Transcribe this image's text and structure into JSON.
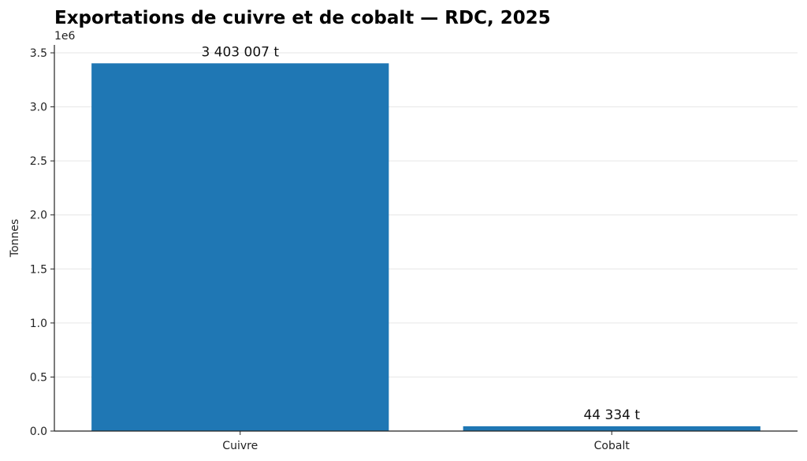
{
  "chart_data": {
    "type": "bar",
    "title": "Exportations de cuivre et de cobalt — RDC, 2025",
    "xlabel": "",
    "ylabel": "Tonnes",
    "y_offset_label": "1e6",
    "categories": [
      "Cuivre",
      "Cobalt"
    ],
    "values": [
      3403007,
      44334
    ],
    "data_labels": [
      "3 403 007 t",
      "44 334 t"
    ],
    "ylim": [
      0,
      3573157
    ],
    "y_ticks": [
      0,
      500000,
      1000000,
      1500000,
      2000000,
      2500000,
      3000000,
      3500000
    ],
    "y_tick_labels": [
      "0.0",
      "0.5",
      "1.0",
      "1.5",
      "2.0",
      "2.5",
      "3.0",
      "3.5"
    ],
    "grid": "horizontal",
    "legend": "none",
    "bar_color": "#1f77b4",
    "grid_color": "#e6e6e6"
  }
}
